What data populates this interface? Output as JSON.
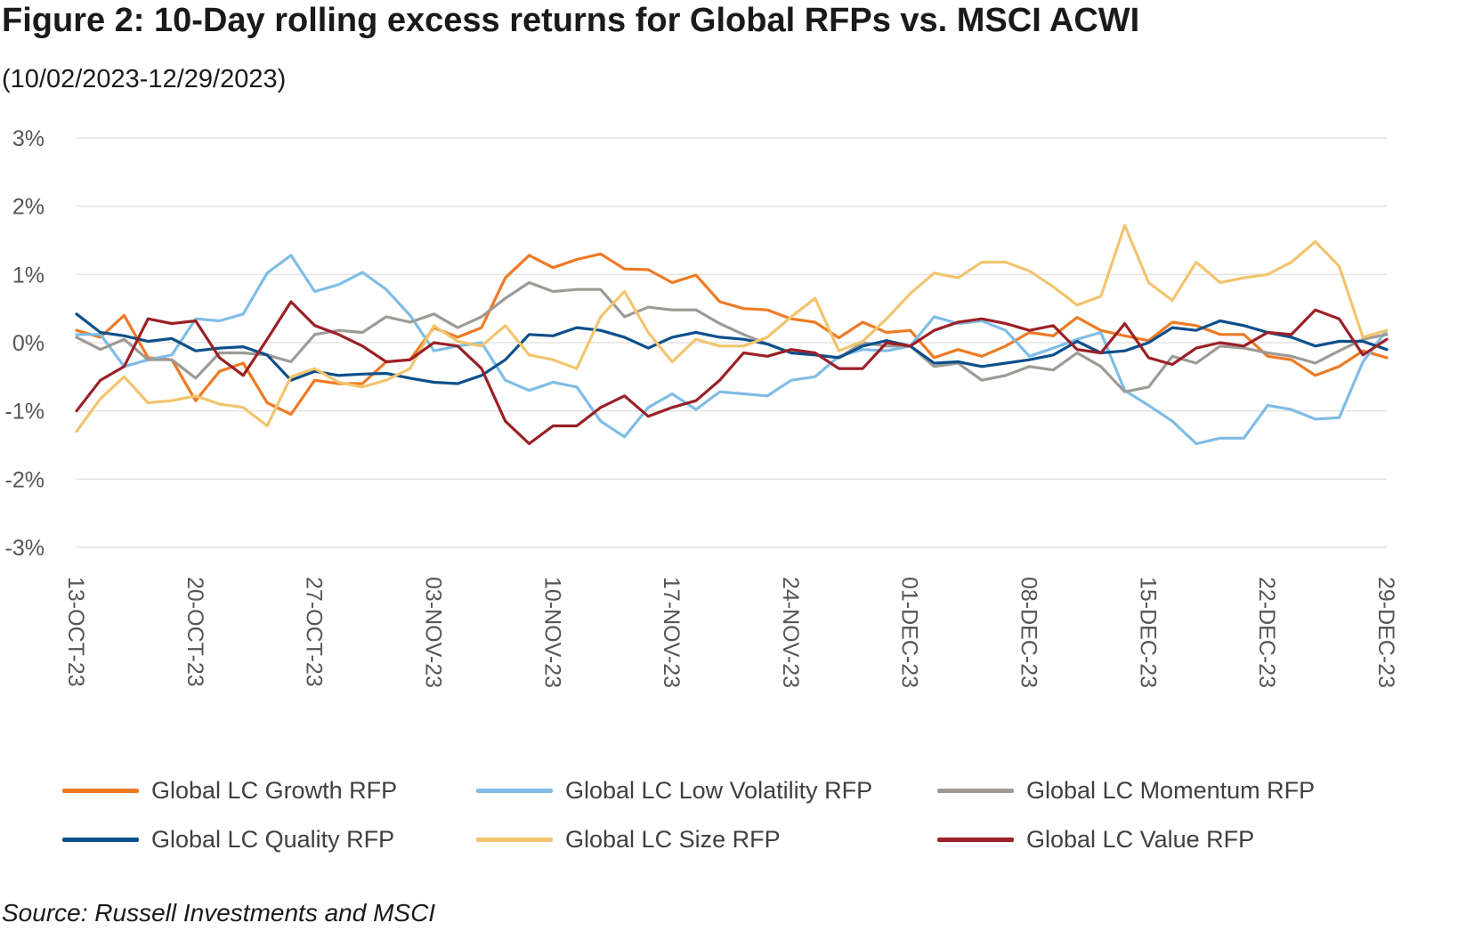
{
  "title": "Figure 2: 10-Day rolling excess returns for Global RFPs vs. MSCI ACWI",
  "subtitle": "(10/02/2023-12/29/2023)",
  "source": "Source: Russell Investments and MSCI",
  "chart_data": {
    "type": "line",
    "title": "Figure 2: 10-Day rolling excess returns for Global RFPs vs. MSCI ACWI",
    "subtitle": "(10/02/2023-12/29/2023)",
    "xlabel": "",
    "ylabel": "",
    "ylim": [
      -3,
      3
    ],
    "y_ticks": [
      "3%",
      "2%",
      "1%",
      "0%",
      "-1%",
      "-2%",
      "-3%"
    ],
    "y_tick_values": [
      3,
      2,
      1,
      0,
      -1,
      -2,
      -3
    ],
    "x_tick_labels": [
      "13-OCT-23",
      "20-OCT-23",
      "27-OCT-23",
      "03-NOV-23",
      "10-NOV-23",
      "17-NOV-23",
      "24-NOV-23",
      "01-DEC-23",
      "08-DEC-23",
      "15-DEC-23",
      "22-DEC-23",
      "29-DEC-23"
    ],
    "x_tick_index": [
      0,
      5,
      10,
      15,
      20,
      25,
      30,
      35,
      40,
      45,
      50,
      55
    ],
    "grid": true,
    "legend_position": "bottom",
    "series": [
      {
        "name": "Global LC Growth RFP",
        "color": "#EE7A24",
        "values": [
          0.18,
          0.08,
          0.4,
          -0.22,
          -0.25,
          -0.85,
          -0.42,
          -0.3,
          -0.88,
          -1.05,
          -0.55,
          -0.6,
          -0.6,
          -0.28,
          -0.25,
          0.22,
          0.08,
          0.22,
          0.95,
          1.28,
          1.1,
          1.22,
          1.3,
          1.08,
          1.07,
          0.88,
          0.99,
          0.6,
          0.5,
          0.48,
          0.35,
          0.3,
          0.07,
          0.3,
          0.15,
          0.18,
          -0.22,
          -0.1,
          -0.2,
          -0.05,
          0.15,
          0.1,
          0.37,
          0.18,
          0.1,
          0.03,
          0.3,
          0.25,
          0.12,
          0.12,
          -0.2,
          -0.25,
          -0.48,
          -0.35,
          -0.12,
          -0.22
        ]
      },
      {
        "name": "Global LC Low Volatility RFP",
        "color": "#7FBDE6",
        "values": [
          0.12,
          0.12,
          -0.35,
          -0.25,
          -0.18,
          0.35,
          0.32,
          0.42,
          1.02,
          1.28,
          0.75,
          0.85,
          1.03,
          0.78,
          0.4,
          -0.12,
          -0.05,
          0.0,
          -0.55,
          -0.7,
          -0.58,
          -0.65,
          -1.15,
          -1.38,
          -0.95,
          -0.75,
          -0.98,
          -0.72,
          -0.75,
          -0.78,
          -0.55,
          -0.5,
          -0.2,
          -0.1,
          -0.12,
          -0.05,
          0.38,
          0.28,
          0.32,
          0.18,
          -0.2,
          -0.08,
          0.05,
          0.15,
          -0.7,
          -0.92,
          -1.15,
          -1.48,
          -1.4,
          -1.4,
          -0.92,
          -0.98,
          -1.12,
          -1.1,
          -0.28,
          0.18
        ]
      },
      {
        "name": "Global LC Momentum RFP",
        "color": "#9E9A96",
        "values": [
          0.08,
          -0.1,
          0.05,
          -0.25,
          -0.25,
          -0.52,
          -0.15,
          -0.15,
          -0.18,
          -0.28,
          0.12,
          0.18,
          0.15,
          0.38,
          0.3,
          0.42,
          0.22,
          0.38,
          0.65,
          0.88,
          0.75,
          0.78,
          0.78,
          0.38,
          0.52,
          0.48,
          0.48,
          0.28,
          0.12,
          -0.02,
          -0.15,
          -0.18,
          -0.22,
          0.0,
          -0.05,
          -0.05,
          -0.35,
          -0.3,
          -0.55,
          -0.48,
          -0.35,
          -0.4,
          -0.15,
          -0.35,
          -0.72,
          -0.65,
          -0.2,
          -0.3,
          -0.05,
          -0.08,
          -0.15,
          -0.2,
          -0.3,
          -0.12,
          0.05,
          0.12
        ]
      },
      {
        "name": "Global LC Quality RFP",
        "color": "#0D4F8B",
        "values": [
          0.42,
          0.15,
          0.1,
          0.02,
          0.06,
          -0.12,
          -0.08,
          -0.06,
          -0.18,
          -0.55,
          -0.42,
          -0.48,
          -0.46,
          -0.45,
          -0.52,
          -0.58,
          -0.6,
          -0.48,
          -0.25,
          0.12,
          0.1,
          0.22,
          0.18,
          0.08,
          -0.08,
          0.08,
          0.15,
          0.08,
          0.05,
          -0.02,
          -0.15,
          -0.18,
          -0.22,
          -0.05,
          0.03,
          -0.05,
          -0.3,
          -0.28,
          -0.35,
          -0.3,
          -0.25,
          -0.18,
          0.02,
          -0.15,
          -0.12,
          0.0,
          0.22,
          0.18,
          0.32,
          0.25,
          0.15,
          0.08,
          -0.05,
          0.02,
          0.02,
          -0.1
        ]
      },
      {
        "name": "Global LC Size RFP",
        "color": "#F2C46E",
        "values": [
          -1.3,
          -0.82,
          -0.5,
          -0.88,
          -0.85,
          -0.78,
          -0.9,
          -0.95,
          -1.22,
          -0.5,
          -0.38,
          -0.58,
          -0.65,
          -0.55,
          -0.38,
          0.25,
          0.02,
          -0.05,
          0.25,
          -0.18,
          -0.25,
          -0.38,
          0.38,
          0.75,
          0.15,
          -0.28,
          0.05,
          -0.05,
          -0.05,
          0.08,
          0.38,
          0.65,
          -0.12,
          0.02,
          0.35,
          0.72,
          1.02,
          0.95,
          1.18,
          1.18,
          1.05,
          0.82,
          0.55,
          0.68,
          1.72,
          0.88,
          0.62,
          1.18,
          0.88,
          0.95,
          1.0,
          1.18,
          1.48,
          1.12,
          0.08,
          0.18
        ]
      },
      {
        "name": "Global LC Value RFP",
        "color": "#9B2027",
        "values": [
          -1.0,
          -0.55,
          -0.35,
          0.35,
          0.28,
          0.32,
          -0.22,
          -0.48,
          0.05,
          0.6,
          0.25,
          0.12,
          -0.05,
          -0.28,
          -0.25,
          0.0,
          -0.05,
          -0.38,
          -1.15,
          -1.48,
          -1.22,
          -1.22,
          -0.95,
          -0.78,
          -1.08,
          -0.95,
          -0.85,
          -0.55,
          -0.15,
          -0.2,
          -0.1,
          -0.15,
          -0.38,
          -0.38,
          0.0,
          -0.05,
          0.18,
          0.3,
          0.35,
          0.28,
          0.18,
          0.25,
          -0.1,
          -0.15,
          0.28,
          -0.22,
          -0.32,
          -0.08,
          0.0,
          -0.05,
          0.15,
          0.12,
          0.48,
          0.35,
          -0.18,
          0.05
        ]
      }
    ]
  }
}
